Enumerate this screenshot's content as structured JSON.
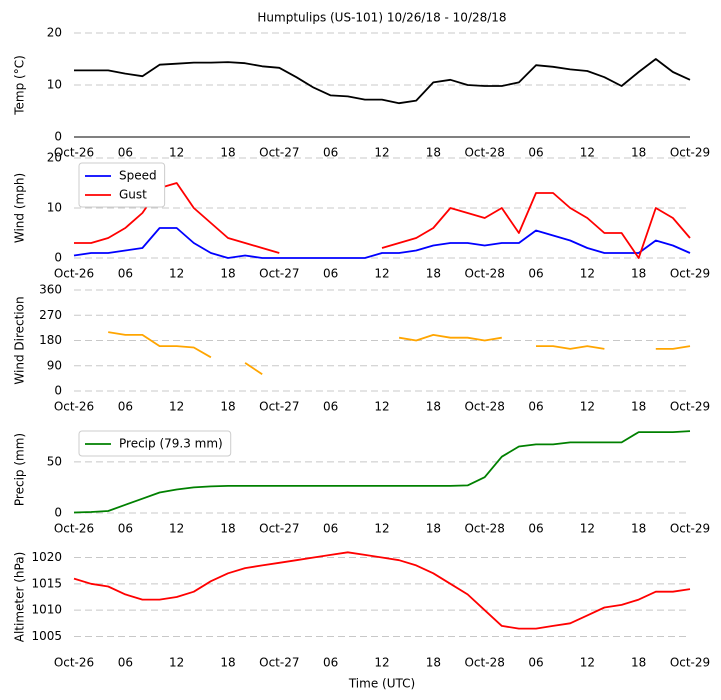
{
  "chart_data": [
    {
      "type": "line",
      "title": "Humptulips (US-101) 10/26/18 - 10/28/18",
      "ylabel": "Temp ($^\\circ$C)",
      "x": [
        0,
        2,
        4,
        6,
        8,
        10,
        12,
        14,
        16,
        18,
        20,
        22,
        24,
        26,
        28,
        30,
        32,
        34,
        36,
        38,
        40,
        42,
        44,
        46,
        48,
        50,
        52,
        54,
        56,
        58,
        60,
        62,
        64,
        66,
        68,
        70,
        72
      ],
      "xlim": [
        0,
        72
      ],
      "xticks": [
        {
          "value": 0,
          "label": "Oct-26"
        },
        {
          "value": 6,
          "label": "06"
        },
        {
          "value": 12,
          "label": "12"
        },
        {
          "value": 18,
          "label": "18"
        },
        {
          "value": 24,
          "label": "Oct-27"
        },
        {
          "value": 30,
          "label": "06"
        },
        {
          "value": 36,
          "label": "12"
        },
        {
          "value": 42,
          "label": "18"
        },
        {
          "value": 48,
          "label": "Oct-28"
        },
        {
          "value": 54,
          "label": "06"
        },
        {
          "value": 60,
          "label": "12"
        },
        {
          "value": 66,
          "label": "18"
        },
        {
          "value": 72,
          "label": "Oct-29"
        }
      ],
      "ylim": [
        0,
        20
      ],
      "yticks": [
        0,
        10,
        20
      ],
      "grid": true,
      "spine": true,
      "series": [
        {
          "color": "#000000",
          "values": [
            12.8,
            12.8,
            12.8,
            12.2,
            11.7,
            13.9,
            14.1,
            14.3,
            14.3,
            14.4,
            14.2,
            13.6,
            13.3,
            11.5,
            9.5,
            8,
            7.8,
            7.2,
            7.2,
            6.5,
            7,
            10.5,
            11,
            10,
            9.8,
            9.8,
            10.5,
            13.8,
            13.5,
            13,
            12.7,
            11.5,
            9.8,
            12.5,
            15,
            12.5,
            11
          ]
        }
      ]
    },
    {
      "type": "line",
      "ylabel": "Wind (mph)",
      "x": [
        0,
        2,
        4,
        6,
        8,
        10,
        12,
        14,
        16,
        18,
        20,
        22,
        24,
        26,
        28,
        30,
        32,
        34,
        36,
        38,
        40,
        42,
        44,
        46,
        48,
        50,
        52,
        54,
        56,
        58,
        60,
        62,
        64,
        66,
        68,
        70,
        72
      ],
      "xlim": [
        0,
        72
      ],
      "xticks": [
        {
          "value": 0,
          "label": "Oct-26"
        },
        {
          "value": 6,
          "label": "06"
        },
        {
          "value": 12,
          "label": "12"
        },
        {
          "value": 18,
          "label": "18"
        },
        {
          "value": 24,
          "label": "Oct-27"
        },
        {
          "value": 30,
          "label": "06"
        },
        {
          "value": 36,
          "label": "12"
        },
        {
          "value": 42,
          "label": "18"
        },
        {
          "value": 48,
          "label": "Oct-28"
        },
        {
          "value": 54,
          "label": "06"
        },
        {
          "value": 60,
          "label": "12"
        },
        {
          "value": 66,
          "label": "18"
        },
        {
          "value": 72,
          "label": "Oct-29"
        }
      ],
      "ylim": [
        0,
        20
      ],
      "yticks": [
        0,
        10,
        20
      ],
      "grid": true,
      "legend": "upper left",
      "series": [
        {
          "name": "Speed",
          "color": "#0000ff",
          "values": [
            0.5,
            1,
            1,
            1.5,
            2,
            6,
            6,
            3,
            1,
            0,
            0.5,
            0,
            0,
            0,
            0,
            0,
            0,
            0,
            1,
            1,
            1.5,
            2.5,
            3,
            3,
            2.5,
            3,
            3,
            5.5,
            4.5,
            3.5,
            2,
            1,
            1,
            1,
            3.5,
            2.5,
            1
          ]
        },
        {
          "name": "Gust",
          "color": "#ff0000",
          "values": [
            3,
            3,
            4,
            6,
            9,
            14,
            15,
            10,
            7,
            4,
            3,
            2,
            1,
            null,
            null,
            null,
            null,
            null,
            2,
            3,
            4,
            6,
            10,
            9,
            8,
            10,
            5,
            13,
            13,
            10,
            8,
            5,
            5,
            0,
            10,
            8,
            4
          ]
        }
      ]
    },
    {
      "type": "line",
      "ylabel": "Wind Direction",
      "x": [
        0,
        2,
        4,
        6,
        8,
        10,
        12,
        14,
        16,
        18,
        20,
        22,
        24,
        26,
        28,
        30,
        32,
        34,
        36,
        38,
        40,
        42,
        44,
        46,
        48,
        50,
        52,
        54,
        56,
        58,
        60,
        62,
        64,
        66,
        68,
        70,
        72
      ],
      "xlim": [
        0,
        72
      ],
      "xticks": [
        {
          "value": 0,
          "label": "Oct-26"
        },
        {
          "value": 6,
          "label": "06"
        },
        {
          "value": 12,
          "label": "12"
        },
        {
          "value": 18,
          "label": "18"
        },
        {
          "value": 24,
          "label": "Oct-27"
        },
        {
          "value": 30,
          "label": "06"
        },
        {
          "value": 36,
          "label": "12"
        },
        {
          "value": 42,
          "label": "18"
        },
        {
          "value": 48,
          "label": "Oct-28"
        },
        {
          "value": 54,
          "label": "06"
        },
        {
          "value": 60,
          "label": "12"
        },
        {
          "value": 66,
          "label": "18"
        },
        {
          "value": 72,
          "label": "Oct-29"
        }
      ],
      "ylim": [
        0,
        360
      ],
      "yticks": [
        0,
        90,
        180,
        270,
        360
      ],
      "grid": true,
      "series": [
        {
          "color": "#ffa500",
          "values": [
            null,
            null,
            210,
            200,
            200,
            160,
            160,
            155,
            120,
            null,
            100,
            60,
            null,
            null,
            null,
            null,
            null,
            null,
            null,
            190,
            180,
            200,
            190,
            190,
            180,
            190,
            null,
            160,
            160,
            150,
            160,
            150,
            null,
            null,
            150,
            150,
            160
          ]
        }
      ]
    },
    {
      "type": "line",
      "ylabel": "Precip (mm)",
      "x": [
        0,
        2,
        4,
        6,
        8,
        10,
        12,
        14,
        16,
        18,
        20,
        22,
        24,
        26,
        28,
        30,
        32,
        34,
        36,
        38,
        40,
        42,
        44,
        46,
        48,
        50,
        52,
        54,
        56,
        58,
        60,
        62,
        64,
        66,
        68,
        70,
        72
      ],
      "xlim": [
        0,
        72
      ],
      "xticks": [
        {
          "value": 0,
          "label": "Oct-26"
        },
        {
          "value": 6,
          "label": "06"
        },
        {
          "value": 12,
          "label": "12"
        },
        {
          "value": 18,
          "label": "18"
        },
        {
          "value": 24,
          "label": "Oct-27"
        },
        {
          "value": 30,
          "label": "06"
        },
        {
          "value": 36,
          "label": "12"
        },
        {
          "value": 42,
          "label": "18"
        },
        {
          "value": 48,
          "label": "Oct-28"
        },
        {
          "value": 54,
          "label": "06"
        },
        {
          "value": 60,
          "label": "12"
        },
        {
          "value": 66,
          "label": "18"
        },
        {
          "value": 72,
          "label": "Oct-29"
        }
      ],
      "ylim": [
        0,
        85
      ],
      "yticks": [
        0,
        50
      ],
      "grid": true,
      "legend": "upper left",
      "series": [
        {
          "name": "Precip (79.3 mm)",
          "color": "#008000",
          "values": [
            0.5,
            1,
            2,
            8,
            14,
            20,
            23,
            25,
            26,
            26.5,
            26.5,
            26.5,
            26.5,
            26.5,
            26.5,
            26.5,
            26.5,
            26.5,
            26.5,
            26.5,
            26.5,
            26.5,
            26.5,
            27,
            35,
            55,
            65,
            67,
            67,
            69,
            69,
            69,
            69,
            79,
            79,
            79,
            80
          ]
        }
      ]
    },
    {
      "type": "line",
      "ylabel": "Altimeter (hPa)",
      "xlabel": "Time (UTC)",
      "x": [
        0,
        2,
        4,
        6,
        8,
        10,
        12,
        14,
        16,
        18,
        20,
        22,
        24,
        26,
        28,
        30,
        32,
        34,
        36,
        38,
        40,
        42,
        44,
        46,
        48,
        50,
        52,
        54,
        56,
        58,
        60,
        62,
        64,
        66,
        68,
        70,
        72
      ],
      "xlim": [
        0,
        72
      ],
      "xticks": [
        {
          "value": 0,
          "label": "Oct-26"
        },
        {
          "value": 6,
          "label": "06"
        },
        {
          "value": 12,
          "label": "12"
        },
        {
          "value": 18,
          "label": "18"
        },
        {
          "value": 24,
          "label": "Oct-27"
        },
        {
          "value": 30,
          "label": "06"
        },
        {
          "value": 36,
          "label": "12"
        },
        {
          "value": 42,
          "label": "18"
        },
        {
          "value": 48,
          "label": "Oct-28"
        },
        {
          "value": 54,
          "label": "06"
        },
        {
          "value": 60,
          "label": "12"
        },
        {
          "value": 66,
          "label": "18"
        },
        {
          "value": 72,
          "label": "Oct-29"
        }
      ],
      "ylim": [
        1003,
        1022
      ],
      "yticks": [
        1005,
        1010,
        1015,
        1020
      ],
      "grid": true,
      "series": [
        {
          "color": "#ff0000",
          "values": [
            1016,
            1015,
            1014.5,
            1013,
            1012,
            1012,
            1012.5,
            1013.5,
            1015.5,
            1017,
            1018,
            1018.5,
            1019,
            1019.5,
            1020,
            1020.5,
            1021,
            1020.5,
            1020,
            1019.5,
            1018.5,
            1017,
            1015,
            1013,
            1010,
            1007,
            1006.5,
            1006.5,
            1007,
            1007.5,
            1009,
            1010.5,
            1011,
            1012,
            1013.5,
            1013.5,
            1014
          ]
        }
      ]
    }
  ]
}
